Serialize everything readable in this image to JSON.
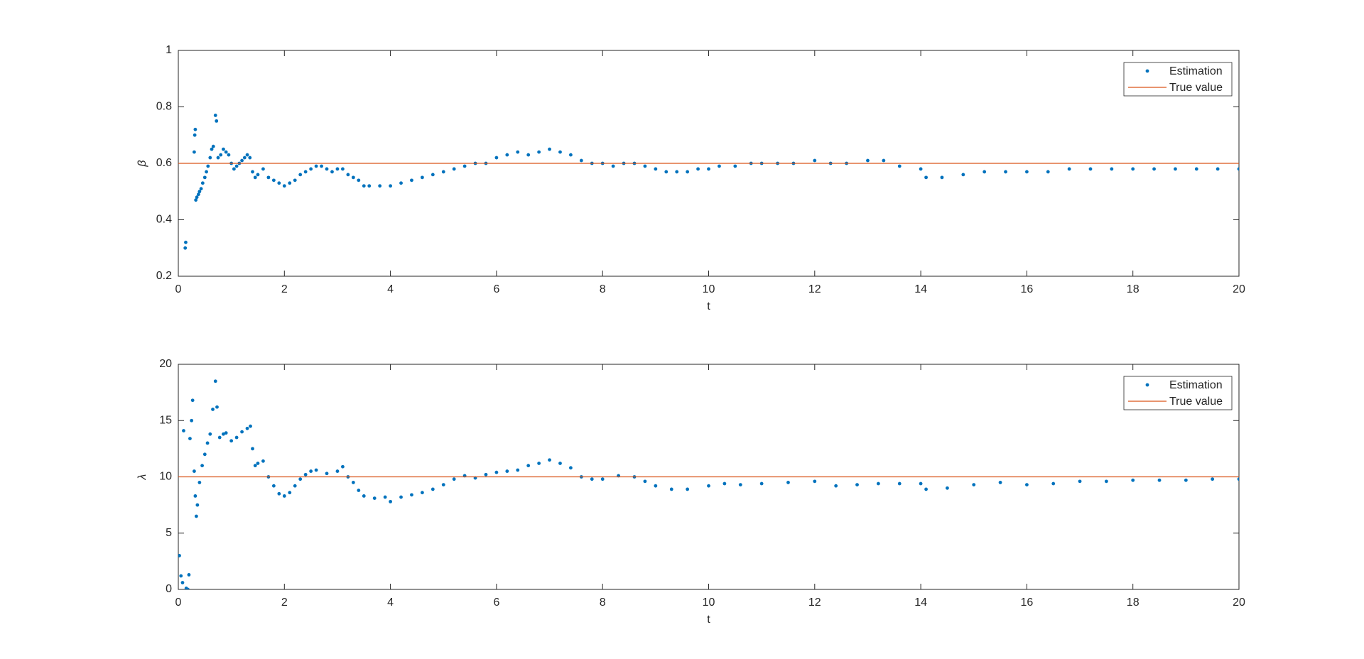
{
  "chart_data": [
    {
      "type": "scatter",
      "xlabel": "t",
      "ylabel": "β",
      "xlim": [
        0,
        20
      ],
      "ylim": [
        0.2,
        1
      ],
      "xticks": [
        0,
        2,
        4,
        6,
        8,
        10,
        12,
        14,
        16,
        18,
        20
      ],
      "yticks": [
        0.2,
        0.4,
        0.6,
        0.8,
        1
      ],
      "legend": "northeast",
      "series": [
        {
          "name": "Estimation",
          "color": "#0072bd",
          "marker": "dot",
          "x": [
            0.13,
            0.14,
            0.3,
            0.31,
            0.32,
            0.33,
            0.35,
            0.38,
            0.4,
            0.43,
            0.46,
            0.5,
            0.53,
            0.56,
            0.6,
            0.63,
            0.66,
            0.7,
            0.72,
            0.75,
            0.8,
            0.85,
            0.9,
            0.95,
            1.0,
            1.05,
            1.1,
            1.15,
            1.2,
            1.25,
            1.3,
            1.35,
            1.4,
            1.45,
            1.5,
            1.6,
            1.7,
            1.8,
            1.9,
            2.0,
            2.1,
            2.2,
            2.3,
            2.4,
            2.5,
            2.6,
            2.7,
            2.8,
            2.9,
            3.0,
            3.1,
            3.2,
            3.3,
            3.4,
            3.5,
            3.6,
            3.8,
            4.0,
            4.2,
            4.4,
            4.6,
            4.8,
            5.0,
            5.2,
            5.4,
            5.6,
            5.8,
            6.0,
            6.2,
            6.4,
            6.6,
            6.8,
            7.0,
            7.2,
            7.4,
            7.6,
            7.8,
            8.0,
            8.2,
            8.4,
            8.6,
            8.8,
            9.0,
            9.2,
            9.4,
            9.6,
            9.8,
            10.0,
            10.2,
            10.5,
            10.8,
            11.0,
            11.3,
            11.6,
            12.0,
            12.3,
            12.6,
            13.0,
            13.3,
            13.6,
            14.0,
            14.1,
            14.4,
            14.8,
            15.2,
            15.6,
            16.0,
            16.4,
            16.8,
            17.2,
            17.6,
            18.0,
            18.4,
            18.8,
            19.2,
            19.6,
            20.0
          ],
          "values": [
            0.3,
            0.32,
            0.64,
            0.7,
            0.72,
            0.47,
            0.48,
            0.49,
            0.5,
            0.51,
            0.53,
            0.55,
            0.57,
            0.59,
            0.62,
            0.65,
            0.66,
            0.77,
            0.75,
            0.62,
            0.63,
            0.65,
            0.64,
            0.63,
            0.6,
            0.58,
            0.59,
            0.6,
            0.61,
            0.62,
            0.63,
            0.62,
            0.57,
            0.55,
            0.56,
            0.58,
            0.55,
            0.54,
            0.53,
            0.52,
            0.53,
            0.54,
            0.56,
            0.57,
            0.58,
            0.59,
            0.59,
            0.58,
            0.57,
            0.58,
            0.58,
            0.56,
            0.55,
            0.54,
            0.52,
            0.52,
            0.52,
            0.52,
            0.53,
            0.54,
            0.55,
            0.56,
            0.57,
            0.58,
            0.59,
            0.6,
            0.6,
            0.62,
            0.63,
            0.64,
            0.63,
            0.64,
            0.65,
            0.64,
            0.63,
            0.61,
            0.6,
            0.6,
            0.59,
            0.6,
            0.6,
            0.59,
            0.58,
            0.57,
            0.57,
            0.57,
            0.58,
            0.58,
            0.59,
            0.59,
            0.6,
            0.6,
            0.6,
            0.6,
            0.61,
            0.6,
            0.6,
            0.61,
            0.61,
            0.59,
            0.58,
            0.55,
            0.55,
            0.56,
            0.57,
            0.57,
            0.57,
            0.57,
            0.58,
            0.58,
            0.58,
            0.58,
            0.58,
            0.58,
            0.58,
            0.58,
            0.58
          ]
        },
        {
          "name": "True value",
          "color": "#d95319",
          "marker": "line",
          "x": [
            0,
            20
          ],
          "values": [
            0.6,
            0.6
          ]
        }
      ]
    },
    {
      "type": "scatter",
      "xlabel": "t",
      "ylabel": "λ",
      "xlim": [
        0,
        20
      ],
      "ylim": [
        0,
        20
      ],
      "xticks": [
        0,
        2,
        4,
        6,
        8,
        10,
        12,
        14,
        16,
        18,
        20
      ],
      "yticks": [
        0,
        5,
        10,
        15,
        20
      ],
      "legend": "northeast",
      "series": [
        {
          "name": "Estimation",
          "color": "#0072bd",
          "marker": "dot",
          "x": [
            0.02,
            0.05,
            0.08,
            0.1,
            0.15,
            0.18,
            0.2,
            0.22,
            0.25,
            0.27,
            0.3,
            0.32,
            0.34,
            0.36,
            0.4,
            0.45,
            0.5,
            0.55,
            0.6,
            0.65,
            0.7,
            0.73,
            0.78,
            0.85,
            0.9,
            1.0,
            1.1,
            1.2,
            1.3,
            1.36,
            1.4,
            1.45,
            1.5,
            1.6,
            1.7,
            1.8,
            1.9,
            2.0,
            2.1,
            2.2,
            2.3,
            2.4,
            2.5,
            2.6,
            2.8,
            3.0,
            3.1,
            3.2,
            3.3,
            3.4,
            3.5,
            3.7,
            3.9,
            4.0,
            4.2,
            4.4,
            4.6,
            4.8,
            5.0,
            5.2,
            5.4,
            5.6,
            5.8,
            6.0,
            6.2,
            6.4,
            6.6,
            6.8,
            7.0,
            7.2,
            7.4,
            7.6,
            7.8,
            8.0,
            8.3,
            8.6,
            8.8,
            9.0,
            9.3,
            9.6,
            10.0,
            10.3,
            10.6,
            11.0,
            11.5,
            12.0,
            12.4,
            12.8,
            13.2,
            13.6,
            14.0,
            14.1,
            14.5,
            15.0,
            15.5,
            16.0,
            16.5,
            17.0,
            17.5,
            18.0,
            18.5,
            19.0,
            19.5,
            20.0
          ],
          "values": [
            3.0,
            1.2,
            0.6,
            14.1,
            0.1,
            0,
            1.3,
            13.4,
            15.0,
            16.8,
            10.5,
            8.3,
            6.5,
            7.5,
            9.5,
            11.0,
            12.0,
            13.0,
            13.8,
            16.0,
            18.5,
            16.2,
            13.5,
            13.8,
            13.9,
            13.2,
            13.5,
            14.0,
            14.3,
            14.5,
            12.5,
            11.0,
            11.2,
            11.4,
            10.0,
            9.2,
            8.5,
            8.3,
            8.6,
            9.2,
            9.8,
            10.2,
            10.5,
            10.6,
            10.3,
            10.5,
            10.9,
            10.0,
            9.5,
            8.8,
            8.3,
            8.1,
            8.2,
            7.8,
            8.2,
            8.4,
            8.6,
            8.9,
            9.3,
            9.8,
            10.1,
            9.9,
            10.2,
            10.4,
            10.5,
            10.6,
            11.0,
            11.2,
            11.5,
            11.2,
            10.8,
            10.0,
            9.8,
            9.8,
            10.1,
            10.0,
            9.6,
            9.2,
            8.9,
            8.9,
            9.2,
            9.4,
            9.3,
            9.4,
            9.5,
            9.6,
            9.2,
            9.3,
            9.4,
            9.4,
            9.4,
            8.9,
            9.0,
            9.3,
            9.5,
            9.3,
            9.4,
            9.6,
            9.6,
            9.7,
            9.7,
            9.7,
            9.8,
            9.8
          ]
        },
        {
          "name": "True value",
          "color": "#d95319",
          "marker": "line",
          "x": [
            0,
            20
          ],
          "values": [
            10,
            10
          ]
        }
      ]
    }
  ]
}
